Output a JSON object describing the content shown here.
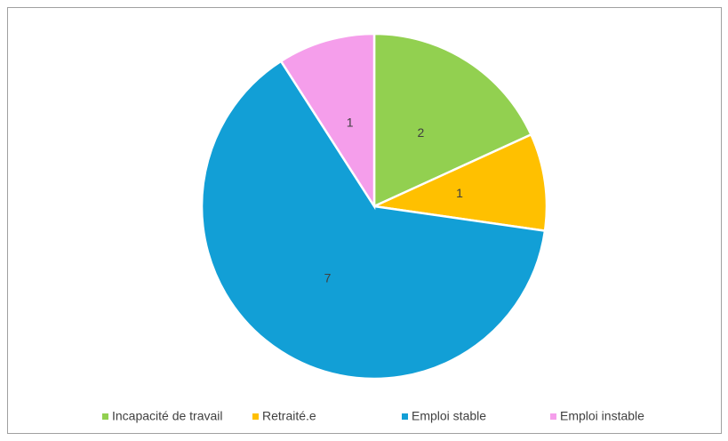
{
  "chart_data": {
    "type": "pie",
    "categories": [
      "Incapacité de travail",
      "Retraité.e",
      "Emploi stable",
      "Emploi instable"
    ],
    "values": [
      2,
      1,
      7,
      1
    ],
    "colors": [
      "#92d050",
      "#ffc000",
      "#129fd6",
      "#f59eeb"
    ],
    "legend": "bottom"
  }
}
